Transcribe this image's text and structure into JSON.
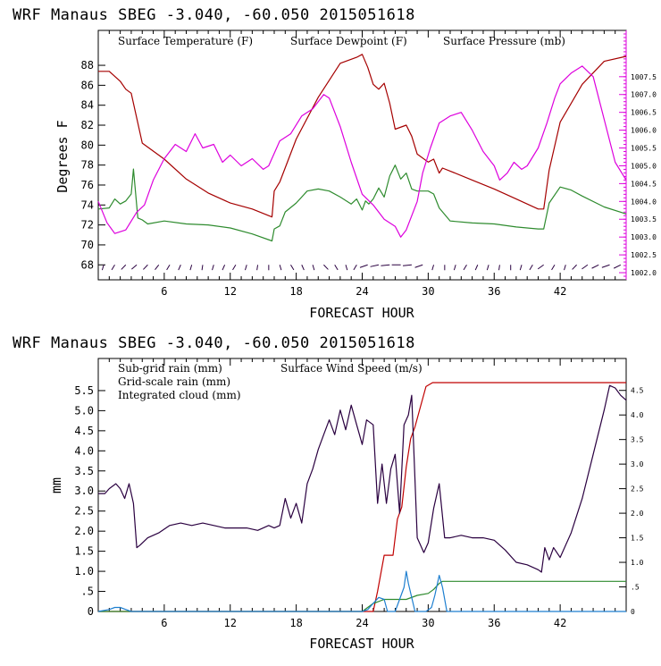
{
  "colors": {
    "temperature": "#a50000",
    "dewpoint": "#2e8b2e",
    "pressure": "#dd00dd",
    "wind": "#2a0040",
    "subgrid_rain": "#c00000",
    "gridscale_rain": "#2e8b2e",
    "cloud": "#1e7fd0",
    "barb": "#2a0040"
  },
  "chart_data": [
    {
      "type": "line",
      "header": "WRF   Manaus SBEG   -3.040, -60.050  2015051618",
      "title": "",
      "xlabel": "FORECAST HOUR",
      "ylabel": "Degrees F",
      "xlim": [
        0,
        48
      ],
      "xticks": [
        6,
        12,
        18,
        24,
        30,
        36,
        42
      ],
      "ylim": [
        66.5,
        91.5
      ],
      "yticks": [
        68,
        70,
        72,
        74,
        76,
        78,
        80,
        82,
        84,
        86,
        88
      ],
      "y2lim": [
        1001.8,
        1008.8
      ],
      "y2ticks": [
        1002.0,
        1002.5,
        1003.0,
        1003.5,
        1004.0,
        1004.5,
        1005.0,
        1005.5,
        1006.0,
        1006.5,
        1007.0,
        1007.5
      ],
      "legend": [
        "Surface Temperature (F)",
        "Surface Dewpoint (F)",
        "Surface Pressure (mb)"
      ],
      "series": [
        {
          "name": "Surface Temperature (F)",
          "axis": "left",
          "x": [
            0,
            1,
            2,
            2.5,
            3,
            4,
            6,
            8,
            10,
            12,
            14,
            15.8,
            16,
            16.5,
            18,
            20,
            22,
            23.5,
            24,
            24.5,
            25,
            25.5,
            26,
            26.5,
            27,
            28,
            28.5,
            29,
            30,
            30.5,
            31,
            31.3,
            32,
            34,
            36,
            38,
            40,
            40.5,
            41,
            42,
            44,
            46,
            48
          ],
          "values": [
            87.4,
            87.4,
            86.4,
            85.6,
            85.2,
            80.2,
            78.6,
            76.6,
            75.2,
            74.2,
            73.6,
            72.8,
            75.4,
            76.3,
            80.6,
            84.8,
            88.2,
            88.8,
            89.1,
            87.8,
            86.1,
            85.6,
            86.2,
            84.2,
            81.6,
            82.0,
            80.9,
            79.1,
            78.3,
            78.6,
            77.2,
            77.7,
            77.4,
            76.5,
            75.6,
            74.6,
            73.6,
            73.6,
            77.5,
            82.3,
            86.1,
            88.4,
            88.9
          ]
        },
        {
          "name": "Surface Dewpoint (F)",
          "axis": "left",
          "x": [
            0,
            1,
            1.5,
            2,
            2.5,
            3,
            3.2,
            3.6,
            4,
            4.5,
            6,
            8,
            10,
            12,
            14,
            15.8,
            16,
            16.5,
            17,
            18,
            19,
            20,
            21,
            22,
            23,
            23.5,
            24,
            24.3,
            24.6,
            25,
            25.5,
            26,
            26.5,
            27,
            27.5,
            28,
            28.5,
            29,
            30,
            30.5,
            31,
            32,
            34,
            36,
            38,
            40,
            40.5,
            41,
            42,
            43,
            44,
            46,
            48
          ],
          "values": [
            73.6,
            73.7,
            74.6,
            74.1,
            74.4,
            75.1,
            77.6,
            72.7,
            72.5,
            72.1,
            72.4,
            72.1,
            72.0,
            71.7,
            71.1,
            70.4,
            71.6,
            71.9,
            73.3,
            74.2,
            75.4,
            75.6,
            75.4,
            74.8,
            74.1,
            74.6,
            73.5,
            74.4,
            74.1,
            74.6,
            75.7,
            74.8,
            76.9,
            78.0,
            76.6,
            77.2,
            75.6,
            75.4,
            75.4,
            75.1,
            73.7,
            72.4,
            72.2,
            72.1,
            71.8,
            71.6,
            71.6,
            74.2,
            75.8,
            75.5,
            74.9,
            73.8,
            73.1
          ]
        },
        {
          "name": "Surface Pressure (mb)",
          "axis": "right",
          "x": [
            0,
            0.8,
            1.5,
            2.5,
            3.5,
            4.2,
            5,
            6,
            7,
            8,
            8.8,
            9.5,
            10.5,
            11.3,
            12,
            13,
            14,
            15,
            15.5,
            16.5,
            17.5,
            18.5,
            19.5,
            20.5,
            21,
            22,
            23,
            24,
            25,
            26,
            27,
            27.5,
            28,
            29,
            29.5,
            30.2,
            31,
            32,
            33,
            34,
            35,
            36,
            36.5,
            37.2,
            37.8,
            38.5,
            39,
            40,
            40.8,
            41.5,
            42,
            43,
            44,
            45,
            46,
            47,
            48
          ],
          "values": [
            1004.0,
            1003.4,
            1003.1,
            1003.2,
            1003.7,
            1003.9,
            1004.6,
            1005.2,
            1005.6,
            1005.4,
            1005.9,
            1005.5,
            1005.6,
            1005.1,
            1005.3,
            1005.0,
            1005.2,
            1004.9,
            1005.0,
            1005.7,
            1005.9,
            1006.4,
            1006.6,
            1007.0,
            1006.9,
            1006.1,
            1005.1,
            1004.2,
            1003.9,
            1003.5,
            1003.3,
            1003.0,
            1003.2,
            1004.0,
            1004.8,
            1005.5,
            1006.2,
            1006.4,
            1006.5,
            1006.0,
            1005.4,
            1005.0,
            1004.6,
            1004.8,
            1005.1,
            1004.9,
            1005.0,
            1005.5,
            1006.2,
            1006.9,
            1007.3,
            1007.6,
            1007.8,
            1007.5,
            1006.3,
            1005.1,
            1004.6
          ]
        }
      ]
    },
    {
      "type": "line",
      "header": "WRF   Manaus SBEG   -3.040, -60.050  2015051618",
      "title": "",
      "xlabel": "FORECAST HOUR",
      "ylabel": "mm",
      "xlim": [
        0,
        48
      ],
      "xticks": [
        6,
        12,
        18,
        24,
        30,
        36,
        42
      ],
      "ylim": [
        0,
        6.3
      ],
      "yticks": [
        0,
        0.5,
        1.0,
        1.5,
        2.0,
        2.5,
        3.0,
        3.5,
        4.0,
        4.5,
        5.0,
        5.5
      ],
      "ytick_labels": [
        "0",
        ".5",
        "1.0",
        "1.5",
        "2.0",
        "2.5",
        "3.0",
        "3.5",
        "4.0",
        "4.5",
        "5.0",
        "5.5"
      ],
      "y2lim": [
        0,
        5.15
      ],
      "y2ticks": [
        0,
        0.5,
        1.0,
        1.5,
        2.0,
        2.5,
        3.0,
        3.5,
        4.0,
        4.5
      ],
      "y2tick_labels": [
        "0",
        ".5",
        "1.0",
        "1.5",
        "2.0",
        "2.5",
        "3.0",
        "3.5",
        "4.0",
        "4.5"
      ],
      "legend": [
        "Sub-grid rain (mm)",
        "Surface Wind Speed (m/s)",
        "Grid-scale rain (mm)",
        "Integrated cloud (mm)"
      ],
      "series": [
        {
          "name": "Sub-grid rain (mm)",
          "axis": "left",
          "x": [
            0,
            25,
            25.4,
            26,
            26.8,
            27.2,
            27.6,
            28,
            28.4,
            28.8,
            29.2,
            29.8,
            30.4,
            31,
            48
          ],
          "values": [
            0,
            0,
            0.5,
            1.4,
            1.4,
            2.3,
            2.6,
            3.6,
            4.3,
            4.6,
            5.0,
            5.6,
            5.7,
            5.7,
            5.7
          ]
        },
        {
          "name": "Grid-scale rain (mm)",
          "axis": "left",
          "x": [
            0,
            24,
            25,
            25.5,
            26,
            28,
            29,
            30,
            30.5,
            31,
            31.3,
            32,
            48
          ],
          "values": [
            0,
            0,
            0.2,
            0.25,
            0.3,
            0.3,
            0.4,
            0.45,
            0.55,
            0.7,
            0.75,
            0.75,
            0.75
          ]
        },
        {
          "name": "Integrated cloud (mm)",
          "axis": "left",
          "x": [
            0,
            1,
            1.5,
            2,
            2.5,
            3,
            24,
            24.5,
            25,
            25.5,
            26,
            26.3,
            27,
            27.8,
            28,
            28.2,
            28.8,
            29.2,
            29.8,
            30.3,
            30.6,
            31,
            31.3,
            31.7,
            32,
            48
          ],
          "values": [
            0,
            0.05,
            0.1,
            0.1,
            0.05,
            0,
            0,
            0.05,
            0.2,
            0.35,
            0.3,
            0,
            0,
            0.6,
            1.0,
            0.7,
            0,
            0,
            0,
            0.1,
            0.4,
            0.9,
            0.6,
            0,
            0,
            0
          ]
        },
        {
          "name": "Surface Wind Speed (m/s)",
          "axis": "right",
          "x": [
            0,
            0.6,
            1,
            1.6,
            2,
            2.4,
            2.8,
            3.2,
            3.5,
            3.8,
            4.5,
            5.5,
            6.5,
            7.5,
            8.5,
            9.5,
            10.5,
            11.5,
            12.5,
            13.5,
            14.5,
            15.5,
            16,
            16.5,
            17,
            17.5,
            18,
            18.5,
            19,
            19.5,
            20,
            20.5,
            21,
            21.5,
            22,
            22.5,
            23,
            23.5,
            24,
            24.4,
            25,
            25.4,
            25.8,
            26.2,
            26.6,
            27,
            27.4,
            27.8,
            28.2,
            28.5,
            29,
            29.6,
            30,
            30.5,
            31,
            31.5,
            32,
            33,
            34,
            35,
            36,
            37,
            38,
            39,
            40,
            40.3,
            40.6,
            41,
            41.4,
            42,
            43,
            44,
            45,
            46,
            46.5,
            47,
            47.5,
            48
          ],
          "values": [
            2.4,
            2.4,
            2.5,
            2.6,
            2.5,
            2.3,
            2.6,
            2.2,
            1.3,
            1.35,
            1.5,
            1.6,
            1.75,
            1.8,
            1.75,
            1.8,
            1.75,
            1.7,
            1.7,
            1.7,
            1.65,
            1.75,
            1.7,
            1.75,
            2.3,
            1.9,
            2.2,
            1.8,
            2.6,
            2.9,
            3.3,
            3.6,
            3.9,
            3.6,
            4.1,
            3.7,
            4.2,
            3.8,
            3.4,
            3.9,
            3.8,
            2.2,
            3.0,
            2.2,
            2.9,
            3.2,
            2.0,
            3.8,
            4.0,
            4.4,
            1.5,
            1.2,
            1.4,
            2.1,
            2.6,
            1.5,
            1.5,
            1.55,
            1.5,
            1.5,
            1.45,
            1.25,
            1.0,
            0.95,
            0.85,
            0.8,
            1.3,
            1.05,
            1.3,
            1.1,
            1.6,
            2.3,
            3.2,
            4.1,
            4.6,
            4.55,
            4.4,
            4.3
          ]
        }
      ]
    }
  ],
  "wind_barbs": {
    "x": [
      0.5,
      1.5,
      2.5,
      3.5,
      4.5,
      5.5,
      6.5,
      7.5,
      8.5,
      9.5,
      10.5,
      11.5,
      12.5,
      13.5,
      14.5,
      15.5,
      16.5,
      17.5,
      18.5,
      19.5,
      20.5,
      21.5,
      22.5,
      23.5,
      24.5,
      25.5,
      26.5,
      27.5,
      28.5,
      29.5,
      30.5,
      31.5,
      32.5,
      33.5,
      34.5,
      35.5,
      36.5,
      37.5,
      38.5,
      39.5,
      40.5,
      41.5,
      42.5,
      43.5,
      44.5,
      45.5,
      46.5,
      47.5
    ],
    "direction_deg": [
      100,
      110,
      120,
      125,
      120,
      115,
      110,
      105,
      100,
      95,
      100,
      105,
      110,
      100,
      95,
      90,
      80,
      70,
      75,
      80,
      60,
      70,
      80,
      110,
      150,
      160,
      170,
      180,
      170,
      150,
      100,
      90,
      100,
      110,
      105,
      100,
      95,
      90,
      100,
      110,
      130,
      110,
      100,
      120,
      130,
      140,
      150,
      140
    ]
  }
}
